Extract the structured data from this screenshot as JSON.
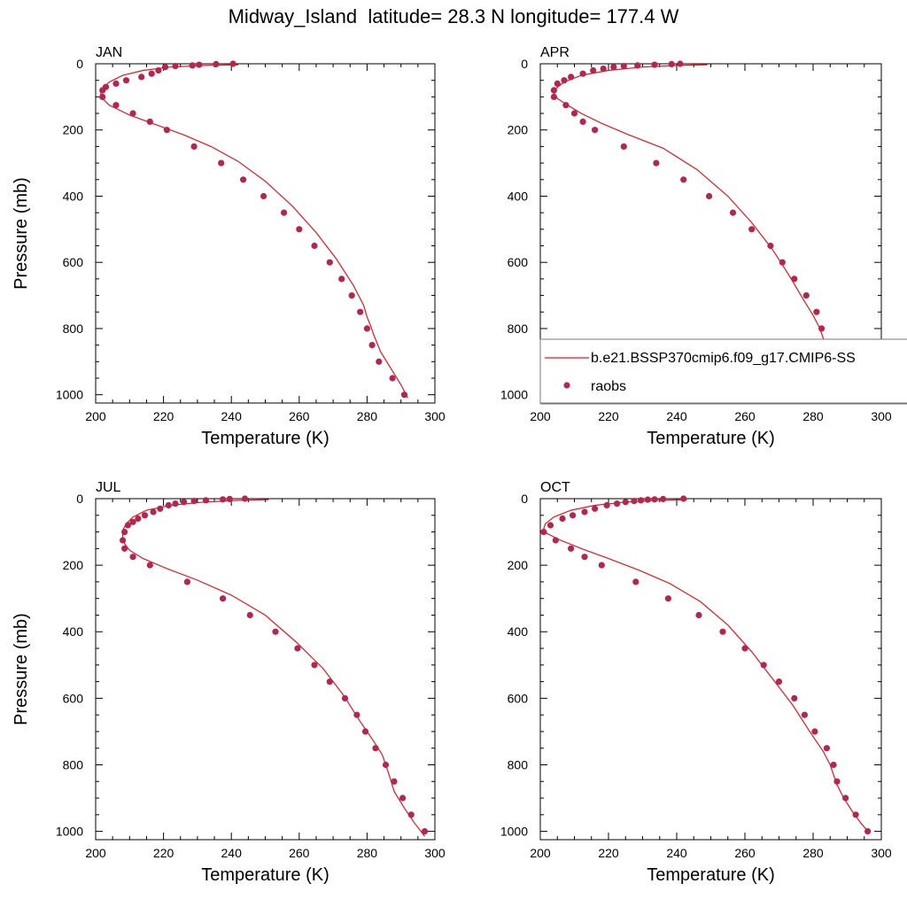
{
  "title": "Midway_Island  latitude= 28.3 N longitude= 177.4 W",
  "legend": {
    "model_label": "b.e21.BSSP370cmip6.f09_g17.CMIP6-SS",
    "obs_label": "raobs",
    "placement": "inside APR panel, lower right"
  },
  "colors": {
    "model_line": "#e8151b",
    "obs_marker": "#b5254f",
    "axes": "#000000"
  },
  "chart_data": [
    {
      "type": "line",
      "panel_label": "JAN",
      "xlabel": "Temperature (K)",
      "ylabel": "Pressure (mb)",
      "xlim": [
        200,
        300
      ],
      "ylim": [
        1025,
        0
      ],
      "xticks": [
        200,
        220,
        240,
        260,
        280,
        300
      ],
      "yticks": [
        0,
        200,
        400,
        600,
        800,
        1000
      ],
      "series": [
        {
          "kind": "line",
          "x": [
            242,
            232,
            222,
            214,
            208,
            204,
            202,
            201.5,
            202,
            204,
            210,
            218,
            226,
            234,
            242,
            250,
            258,
            265,
            271,
            276,
            279,
            280,
            281,
            282,
            284,
            287,
            290,
            292
          ],
          "y": [
            3,
            5,
            10,
            20,
            35,
            55,
            75,
            90,
            105,
            125,
            155,
            185,
            215,
            250,
            295,
            355,
            430,
            510,
            590,
            670,
            730,
            765,
            790,
            820,
            870,
            920,
            970,
            1010
          ]
        },
        {
          "kind": "scatter",
          "x": [
            240.5,
            235.5,
            230.5,
            228.5,
            223.5,
            220.5,
            218.5,
            216.5,
            213.5,
            209,
            206,
            203,
            202,
            202,
            206,
            211,
            216,
            221,
            229,
            237,
            243.5,
            249.5,
            255.5,
            260,
            264.5,
            269,
            272.5,
            275.5,
            278,
            280,
            281.5,
            283.5,
            287.5,
            291
          ],
          "y": [
            0,
            1,
            3,
            5,
            7,
            10,
            20,
            30,
            40,
            50,
            60,
            70,
            80,
            100,
            125,
            150,
            175,
            200,
            250,
            300,
            350,
            400,
            450,
            500,
            550,
            600,
            650,
            700,
            750,
            800,
            850,
            900,
            950,
            1000
          ]
        }
      ]
    },
    {
      "type": "line",
      "panel_label": "APR",
      "xlabel": "Temperature (K)",
      "ylabel": "",
      "xlim": [
        200,
        300
      ],
      "ylim": [
        1025,
        0
      ],
      "xticks": [
        200,
        220,
        240,
        260,
        280,
        300
      ],
      "yticks": [
        0,
        200,
        400,
        600,
        800,
        1000
      ],
      "series": [
        {
          "kind": "line",
          "x": [
            249,
            240,
            230,
            220,
            212,
            207,
            204.5,
            204,
            205,
            208,
            212,
            218,
            226,
            236,
            246,
            255,
            262,
            268,
            273,
            277,
            280,
            282,
            283,
            284,
            285,
            287,
            290,
            292
          ],
          "y": [
            3,
            5,
            10,
            20,
            35,
            55,
            75,
            90,
            105,
            125,
            150,
            180,
            215,
            255,
            320,
            400,
            480,
            560,
            640,
            710,
            760,
            800,
            830,
            860,
            900,
            940,
            975,
            1005
          ]
        },
        {
          "kind": "scatter",
          "x": [
            241,
            238.5,
            233.5,
            228.5,
            224.5,
            221.5,
            218.5,
            215.5,
            212.5,
            209,
            207,
            205,
            204,
            204,
            207.5,
            210,
            212.5,
            216,
            224.5,
            234,
            242,
            249.5,
            256.5,
            262,
            267.5,
            271,
            274.5,
            278,
            281,
            282.5,
            283.5,
            285,
            288,
            291
          ],
          "y": [
            0,
            1,
            3,
            5,
            7,
            10,
            15,
            20,
            30,
            40,
            50,
            60,
            80,
            100,
            125,
            150,
            175,
            200,
            250,
            300,
            350,
            400,
            450,
            500,
            550,
            600,
            650,
            700,
            750,
            800,
            850,
            900,
            950,
            1000
          ]
        }
      ]
    },
    {
      "type": "line",
      "panel_label": "JUL",
      "xlabel": "Temperature (K)",
      "ylabel": "Pressure (mb)",
      "xlim": [
        200,
        300
      ],
      "ylim": [
        1025,
        0
      ],
      "xticks": [
        200,
        220,
        240,
        260,
        280,
        300
      ],
      "yticks": [
        0,
        200,
        400,
        600,
        800,
        1000
      ],
      "series": [
        {
          "kind": "line",
          "x": [
            251,
            242,
            232,
            222,
            215,
            211,
            209,
            208,
            208,
            208.5,
            210,
            214,
            221,
            230,
            240,
            250,
            259,
            267,
            273,
            278,
            282,
            284.5,
            285.5,
            286.5,
            288,
            291,
            294,
            297
          ],
          "y": [
            3,
            5,
            10,
            20,
            35,
            55,
            75,
            95,
            115,
            135,
            155,
            180,
            210,
            245,
            290,
            350,
            430,
            510,
            590,
            670,
            730,
            770,
            800,
            830,
            880,
            930,
            975,
            1015
          ]
        },
        {
          "kind": "scatter",
          "x": [
            244,
            239.5,
            237.5,
            232.5,
            229,
            226,
            223.5,
            221.5,
            219,
            217,
            214.5,
            212.5,
            211,
            209.5,
            208.5,
            208,
            208.5,
            211,
            216,
            227,
            237.5,
            245.5,
            253,
            259.5,
            264.5,
            269,
            273.5,
            277,
            279.5,
            282.5,
            285.5,
            288,
            290.5,
            293,
            297
          ],
          "y": [
            0,
            1,
            2,
            5,
            7,
            10,
            15,
            20,
            30,
            40,
            50,
            60,
            70,
            80,
            100,
            125,
            150,
            175,
            200,
            250,
            300,
            350,
            400,
            450,
            500,
            550,
            600,
            650,
            700,
            750,
            800,
            850,
            900,
            950,
            1000
          ]
        }
      ]
    },
    {
      "type": "line",
      "panel_label": "OCT",
      "xlabel": "Temperature (K)",
      "ylabel": "",
      "xlim": [
        200,
        300
      ],
      "ylim": [
        1025,
        0
      ],
      "xticks": [
        200,
        220,
        240,
        260,
        280,
        300
      ],
      "yticks": [
        0,
        200,
        400,
        600,
        800,
        1000
      ],
      "series": [
        {
          "kind": "line",
          "x": [
            243,
            234,
            225,
            216,
            209,
            204,
            201.5,
            201,
            202,
            206,
            212,
            220,
            229,
            238,
            247,
            255,
            262,
            268,
            274,
            279,
            283,
            285,
            286,
            287,
            289,
            291.5,
            294,
            296.5
          ],
          "y": [
            3,
            5,
            10,
            20,
            35,
            55,
            75,
            90,
            105,
            125,
            150,
            180,
            215,
            255,
            310,
            380,
            460,
            540,
            620,
            700,
            760,
            800,
            830,
            860,
            900,
            940,
            975,
            1005
          ]
        },
        {
          "kind": "scatter",
          "x": [
            242,
            236,
            233.5,
            231.5,
            229.5,
            227.5,
            225,
            222.5,
            219.5,
            216,
            213,
            209.5,
            206.5,
            203,
            201,
            204.5,
            209,
            213,
            218,
            228,
            237.5,
            246.5,
            253.5,
            260,
            265.5,
            270,
            274.5,
            277.5,
            280.5,
            284,
            286,
            287,
            289.5,
            292.5,
            296
          ],
          "y": [
            0,
            1,
            2,
            3,
            5,
            7,
            10,
            15,
            20,
            30,
            40,
            50,
            60,
            80,
            100,
            125,
            150,
            175,
            200,
            250,
            300,
            350,
            400,
            450,
            500,
            550,
            600,
            650,
            700,
            750,
            800,
            850,
            900,
            950,
            1000
          ]
        }
      ]
    }
  ]
}
